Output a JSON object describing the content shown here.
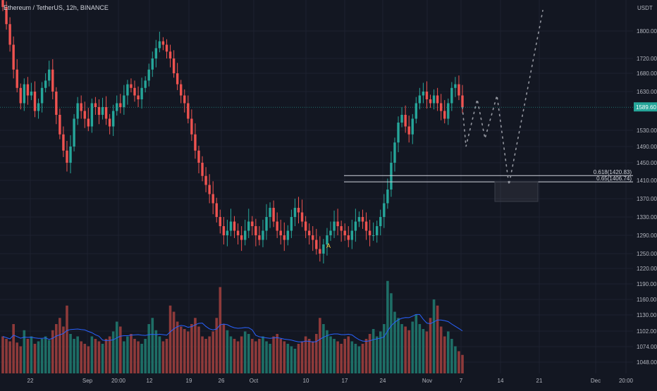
{
  "chart_data": {
    "type": "candlestick",
    "title": "Ethereum / TetherUS, 12h, BINANCE",
    "currency": "USDT",
    "price_axis": {
      "ticks": [
        1800,
        1720,
        1680,
        1630,
        1530,
        1490,
        1450,
        1410,
        1370,
        1330,
        1290,
        1250,
        1220,
        1190,
        1160,
        1130,
        1102,
        1074,
        1048
      ],
      "labels": [
        "1800.00",
        "1720.00",
        "1680.00",
        "1630.00",
        "1530.00",
        "1490.00",
        "1450.00",
        "1410.00",
        "1370.00",
        "1330.00",
        "1290.00",
        "1250.00",
        "1220.00",
        "1190.00",
        "1160.00",
        "1130.00",
        "1102.00",
        "1074.00",
        "1048.00"
      ]
    },
    "time_axis": [
      "22",
      "Sep",
      "20:00",
      "12",
      "19",
      "26",
      "Oct",
      "10",
      "17",
      "24",
      "Nov",
      "7",
      "14",
      "21",
      "Dec",
      "20:00"
    ],
    "last_price": "1589.60",
    "candles_close": [
      1870,
      1820,
      1760,
      1690,
      1640,
      1600,
      1650,
      1620,
      1630,
      1580,
      1600,
      1640,
      1660,
      1690,
      1630,
      1570,
      1520,
      1480,
      1450,
      1490,
      1560,
      1600,
      1580,
      1560,
      1540,
      1600,
      1590,
      1570,
      1590,
      1560,
      1540,
      1580,
      1600,
      1590,
      1620,
      1650,
      1640,
      1620,
      1610,
      1640,
      1660,
      1690,
      1720,
      1750,
      1770,
      1760,
      1740,
      1720,
      1680,
      1650,
      1620,
      1600,
      1560,
      1520,
      1480,
      1450,
      1420,
      1400,
      1380,
      1360,
      1330,
      1310,
      1290,
      1300,
      1320,
      1300,
      1290,
      1280,
      1300,
      1320,
      1310,
      1290,
      1280,
      1300,
      1330,
      1350,
      1320,
      1300,
      1290,
      1280,
      1300,
      1330,
      1350,
      1340,
      1320,
      1300,
      1290,
      1280,
      1260,
      1250,
      1270,
      1290,
      1300,
      1320,
      1310,
      1300,
      1290,
      1280,
      1300,
      1320,
      1330,
      1320,
      1300,
      1290,
      1290,
      1310,
      1330,
      1360,
      1390,
      1450,
      1500,
      1550,
      1570,
      1540,
      1520,
      1560,
      1600,
      1620,
      1630,
      1610,
      1600,
      1620,
      1600,
      1580,
      1560,
      1600,
      1640,
      1650,
      1620,
      1590
    ],
    "volume": [
      30,
      28,
      26,
      40,
      25,
      22,
      35,
      28,
      30,
      24,
      26,
      28,
      30,
      27,
      35,
      40,
      45,
      38,
      55,
      32,
      28,
      30,
      26,
      24,
      22,
      30,
      28,
      26,
      24,
      28,
      30,
      34,
      42,
      38,
      26,
      30,
      32,
      28,
      26,
      24,
      28,
      40,
      45,
      35,
      30,
      26,
      28,
      55,
      50,
      42,
      38,
      36,
      34,
      40,
      45,
      38,
      30,
      28,
      30,
      34,
      45,
      70,
      40,
      35,
      30,
      28,
      26,
      30,
      34,
      32,
      28,
      26,
      28,
      30,
      26,
      24,
      30,
      32,
      28,
      26,
      24,
      22,
      20,
      24,
      26,
      30,
      28,
      26,
      32,
      45,
      40,
      35,
      30,
      28,
      26,
      24,
      28,
      30,
      26,
      24,
      22,
      24,
      28,
      32,
      36,
      30,
      34,
      40,
      75,
      65,
      50,
      45,
      40,
      38,
      35,
      42,
      48,
      40,
      36,
      34,
      45,
      60,
      55,
      38,
      30,
      34,
      28,
      22,
      18,
      15
    ],
    "fib_levels": [
      {
        "label": "0.618(1420.83)",
        "price": 1420.83
      },
      {
        "label": "0.65(1406.74)",
        "price": 1406.74
      }
    ],
    "projection_path": [
      1589.6,
      1490,
      1610,
      1510,
      1620,
      1400,
      1860
    ],
    "annotation": "A",
    "colors": {
      "up": "#26a69a",
      "down": "#ef5350",
      "up_vol": "#1e6e66",
      "down_vol": "#8e3a3a",
      "ma": "#2962ff",
      "background": "#131722",
      "grid": "#1e2230",
      "axis_text": "#b2b5be",
      "last_price_bg": "#26a69a",
      "fib_line": "#d1d4dc"
    }
  },
  "ui": {
    "title_text": "Ethereum / TetherUS, 12h, BINANCE",
    "currency_label": "USDT",
    "last_price_label": "1589.60",
    "fib_label_0": "0.618(1420.83)",
    "fib_label_1": "0.65(1406.74)",
    "annotation_label": "A"
  }
}
